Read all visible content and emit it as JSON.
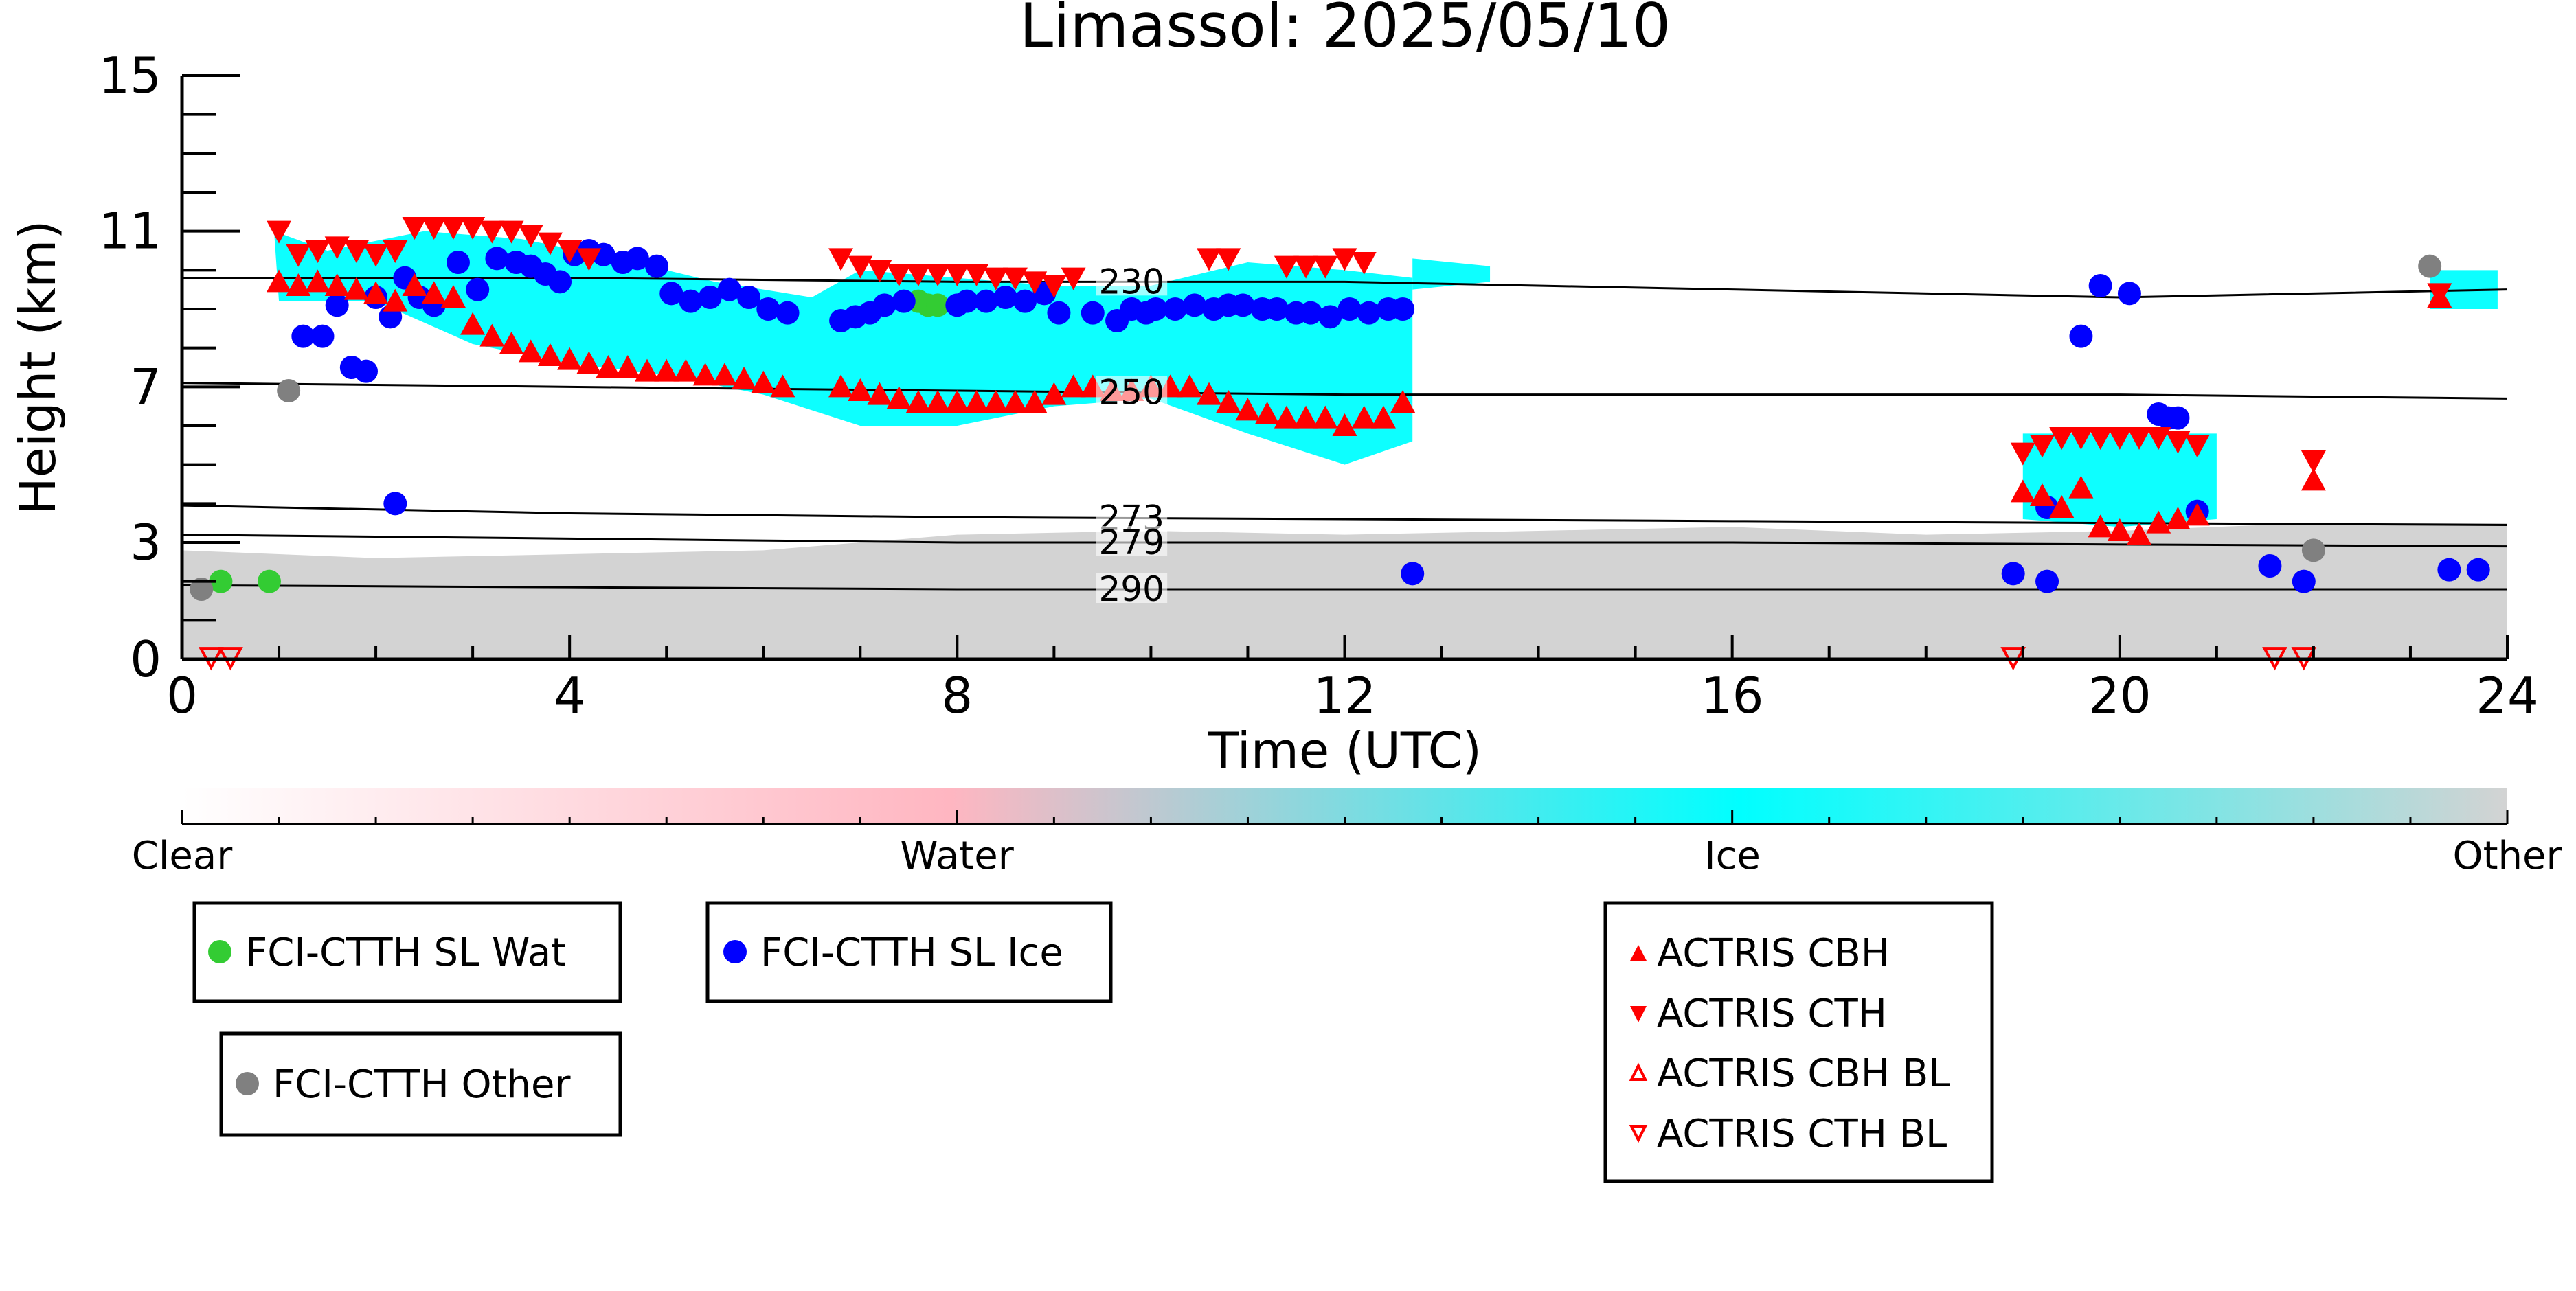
{
  "chart_data": {
    "type": "scatter",
    "title": "Limassol: 2025/05/10",
    "xlabel": "Time (UTC)",
    "ylabel": "Height (km)",
    "xlim": [
      0,
      24
    ],
    "ylim": [
      0,
      15
    ],
    "x_ticks": [
      0,
      4,
      8,
      12,
      16,
      20,
      24
    ],
    "x_tick_labels": [
      "0",
      "4",
      "8",
      "12",
      "16",
      "20",
      "24"
    ],
    "y_ticks": [
      0,
      3,
      7,
      11,
      15
    ],
    "y_tick_labels": [
      "0",
      "3",
      "7",
      "11",
      "15"
    ],
    "colorbar": {
      "labels": [
        "Clear",
        "Water",
        "Ice",
        "Other"
      ],
      "colors": [
        "#ffffff",
        "#ffb6c1",
        "#00ffff",
        "#d3d3d3"
      ]
    },
    "background_cloud_mask": {
      "other_layer": [
        [
          0,
          2.8
        ],
        [
          2,
          2.6
        ],
        [
          4,
          2.7
        ],
        [
          6,
          2.8
        ],
        [
          8,
          3.2
        ],
        [
          10,
          3.3
        ],
        [
          12,
          3.2
        ],
        [
          14,
          3.3
        ],
        [
          16,
          3.4
        ],
        [
          18,
          3.2
        ],
        [
          20,
          3.3
        ],
        [
          22,
          3.5
        ],
        [
          24,
          3.5
        ]
      ],
      "ice_regions": [
        {
          "upper": [
            [
              0.95,
              11.0
            ],
            [
              1.5,
              10.5
            ],
            [
              2.5,
              11.0
            ],
            [
              3.5,
              10.8
            ],
            [
              4.5,
              10.3
            ],
            [
              5.5,
              9.7
            ],
            [
              6.5,
              9.3
            ],
            [
              7.0,
              10.0
            ],
            [
              8.0,
              9.8
            ],
            [
              9.0,
              9.6
            ],
            [
              10.0,
              9.6
            ],
            [
              11.0,
              10.2
            ],
            [
              12.0,
              10.0
            ],
            [
              12.7,
              9.8
            ]
          ],
          "lower": [
            [
              12.7,
              5.6
            ],
            [
              12.0,
              5.0
            ],
            [
              11.0,
              5.8
            ],
            [
              10.0,
              6.7
            ],
            [
              9.0,
              6.5
            ],
            [
              8.0,
              6.0
            ],
            [
              7.0,
              6.0
            ],
            [
              6.0,
              6.8
            ],
            [
              5.0,
              7.3
            ],
            [
              4.0,
              7.6
            ],
            [
              3.0,
              8.1
            ],
            [
              2.0,
              9.2
            ],
            [
              1.0,
              9.2
            ]
          ]
        },
        {
          "upper": [
            [
              12.7,
              10.3
            ],
            [
              13.5,
              10.1
            ]
          ],
          "lower": [
            [
              13.5,
              9.7
            ],
            [
              12.7,
              9.5
            ]
          ]
        },
        {
          "upper": [
            [
              19.0,
              5.8
            ],
            [
              20.0,
              5.8
            ],
            [
              21.0,
              5.8
            ]
          ],
          "lower": [
            [
              21.0,
              3.6
            ],
            [
              20.0,
              3.4
            ],
            [
              19.0,
              3.6
            ]
          ]
        },
        {
          "upper": [
            [
              23.2,
              10.0
            ],
            [
              23.9,
              10.0
            ]
          ],
          "lower": [
            [
              23.9,
              9.0
            ],
            [
              23.2,
              9.0
            ]
          ]
        }
      ]
    },
    "temperature_contours": [
      {
        "label": "230",
        "x": [
          0,
          4,
          8,
          12,
          16,
          20,
          24
        ],
        "y": [
          9.8,
          9.8,
          9.7,
          9.7,
          9.5,
          9.3,
          9.5
        ]
      },
      {
        "label": "250",
        "x": [
          0,
          4,
          8,
          12,
          16,
          20,
          24
        ],
        "y": [
          7.1,
          7.0,
          6.9,
          6.8,
          6.8,
          6.8,
          6.7
        ]
      },
      {
        "label": "273",
        "x": [
          0,
          4,
          8,
          12,
          16,
          20,
          24
        ],
        "y": [
          3.95,
          3.75,
          3.65,
          3.6,
          3.55,
          3.5,
          3.45
        ]
      },
      {
        "label": "279",
        "x": [
          0,
          4,
          8,
          12,
          16,
          20,
          24
        ],
        "y": [
          3.2,
          3.1,
          3.0,
          3.0,
          3.0,
          2.95,
          2.9
        ]
      },
      {
        "label": "290",
        "x": [
          0,
          4,
          8,
          12,
          16,
          20,
          24
        ],
        "y": [
          1.9,
          1.85,
          1.8,
          1.8,
          1.8,
          1.8,
          1.8
        ]
      }
    ],
    "series": [
      {
        "name": "FCI-CTTH SL Wat",
        "marker": "circle",
        "color": "#33cc33",
        "x": [
          0.4,
          0.9,
          7.6,
          7.7,
          7.8
        ],
        "y": [
          2.0,
          2.0,
          9.2,
          9.1,
          9.1
        ]
      },
      {
        "name": "FCI-CTTH SL Ice",
        "marker": "circle",
        "color": "#0000ff",
        "x": [
          1.25,
          1.45,
          1.6,
          1.75,
          1.9,
          2.0,
          2.15,
          2.3,
          2.45,
          2.6,
          2.85,
          3.05,
          3.25,
          3.45,
          3.6,
          3.75,
          3.9,
          4.05,
          4.2,
          4.35,
          4.55,
          4.7,
          4.9,
          5.05,
          5.25,
          5.45,
          5.65,
          5.85,
          6.05,
          6.25,
          6.8,
          6.95,
          7.1,
          7.25,
          7.45,
          8.0,
          8.1,
          8.3,
          8.5,
          8.7,
          8.9,
          9.05,
          9.4,
          9.65,
          9.8,
          9.95,
          10.05,
          10.25,
          10.45,
          10.65,
          10.8,
          10.95,
          11.15,
          11.3,
          11.5,
          11.65,
          11.85,
          12.05,
          12.25,
          12.45,
          12.6,
          2.2,
          12.7,
          19.25,
          19.6,
          19.8,
          20.1,
          20.4,
          20.5,
          20.6,
          20.8,
          18.9,
          19.25,
          21.55,
          21.9,
          23.4,
          23.7
        ],
        "y": [
          8.3,
          8.3,
          9.1,
          7.5,
          7.4,
          9.3,
          8.8,
          9.8,
          9.3,
          9.1,
          10.2,
          9.5,
          10.3,
          10.2,
          10.1,
          9.9,
          9.7,
          10.4,
          10.5,
          10.4,
          10.2,
          10.3,
          10.1,
          9.4,
          9.2,
          9.3,
          9.5,
          9.3,
          9.0,
          8.9,
          8.7,
          8.8,
          8.9,
          9.1,
          9.2,
          9.1,
          9.2,
          9.2,
          9.3,
          9.2,
          9.4,
          8.9,
          8.9,
          8.7,
          9.0,
          8.9,
          9.0,
          9.0,
          9.1,
          9.0,
          9.1,
          9.1,
          9.0,
          9.0,
          8.9,
          8.9,
          8.8,
          9.0,
          8.9,
          9.0,
          9.0,
          4.0,
          2.2,
          3.9,
          8.3,
          9.6,
          9.4,
          6.3,
          6.2,
          6.2,
          3.8,
          2.2,
          2.0,
          2.4,
          2.0,
          2.3,
          2.3
        ]
      },
      {
        "name": "FCI-CTTH Other",
        "marker": "circle",
        "color": "#808080",
        "x": [
          0.2,
          1.1,
          22.0,
          23.2
        ],
        "y": [
          1.8,
          6.9,
          2.8,
          10.1
        ]
      },
      {
        "name": "ACTRIS CBH",
        "marker": "triangle-up",
        "color": "#ff0000",
        "x": [
          1.0,
          1.2,
          1.4,
          1.6,
          1.8,
          2.0,
          2.2,
          2.4,
          2.6,
          2.8,
          3.0,
          3.2,
          3.4,
          3.6,
          3.8,
          4.0,
          4.2,
          4.4,
          4.6,
          4.8,
          5.0,
          5.2,
          5.4,
          5.6,
          5.8,
          6.0,
          6.2,
          6.8,
          7.0,
          7.2,
          7.4,
          7.6,
          7.8,
          8.0,
          8.2,
          8.4,
          8.6,
          8.8,
          9.0,
          9.2,
          9.4,
          9.6,
          9.8,
          10.0,
          10.2,
          10.4,
          10.6,
          10.8,
          11.0,
          11.2,
          11.4,
          11.6,
          11.8,
          12.0,
          12.2,
          12.4,
          12.6,
          19.0,
          19.2,
          19.4,
          19.6,
          19.8,
          20.0,
          20.2,
          20.4,
          20.6,
          20.8,
          22.0,
          23.3
        ],
        "y": [
          9.7,
          9.6,
          9.7,
          9.6,
          9.5,
          9.4,
          9.2,
          9.6,
          9.4,
          9.3,
          8.6,
          8.3,
          8.1,
          7.9,
          7.8,
          7.7,
          7.6,
          7.5,
          7.5,
          7.4,
          7.4,
          7.4,
          7.3,
          7.3,
          7.2,
          7.1,
          7.0,
          7.0,
          6.9,
          6.8,
          6.7,
          6.6,
          6.6,
          6.6,
          6.6,
          6.6,
          6.6,
          6.6,
          6.8,
          7.0,
          7.0,
          6.9,
          6.9,
          7.0,
          7.0,
          7.0,
          6.8,
          6.6,
          6.4,
          6.3,
          6.2,
          6.2,
          6.2,
          6.0,
          6.2,
          6.2,
          6.6,
          4.3,
          4.2,
          3.9,
          4.4,
          3.4,
          3.3,
          3.2,
          3.5,
          3.6,
          3.7,
          4.6,
          9.3
        ]
      },
      {
        "name": "ACTRIS CTH",
        "marker": "triangle-down",
        "color": "#ff0000",
        "x": [
          1.0,
          1.2,
          1.4,
          1.6,
          1.8,
          2.0,
          2.2,
          2.4,
          2.6,
          2.8,
          3.0,
          3.2,
          3.4,
          3.6,
          3.8,
          4.0,
          4.2,
          6.8,
          7.0,
          7.2,
          7.4,
          7.6,
          7.8,
          8.0,
          8.2,
          8.4,
          8.6,
          8.8,
          9.0,
          9.2,
          10.6,
          10.8,
          11.4,
          11.6,
          11.8,
          12.0,
          12.2,
          19.0,
          19.2,
          19.4,
          19.6,
          19.8,
          20.0,
          20.2,
          20.4,
          20.6,
          20.8,
          22.0,
          23.3
        ],
        "y": [
          11.0,
          10.4,
          10.5,
          10.6,
          10.5,
          10.4,
          10.5,
          11.1,
          11.1,
          11.1,
          11.1,
          11.0,
          11.0,
          10.9,
          10.7,
          10.5,
          10.3,
          10.3,
          10.1,
          10.0,
          9.9,
          9.9,
          9.9,
          9.9,
          9.9,
          9.8,
          9.8,
          9.7,
          9.6,
          9.8,
          10.3,
          10.3,
          10.1,
          10.1,
          10.1,
          10.3,
          10.2,
          5.3,
          5.5,
          5.7,
          5.7,
          5.7,
          5.7,
          5.7,
          5.7,
          5.6,
          5.5,
          5.1,
          9.4
        ]
      },
      {
        "name": "ACTRIS CBH BL",
        "marker": "triangle-up-open",
        "color": "#ff0000",
        "x": [],
        "y": []
      },
      {
        "name": "ACTRIS CTH BL",
        "marker": "triangle-down-open",
        "color": "#ff0000",
        "x": [
          0.3,
          0.5,
          18.9,
          21.6,
          21.9
        ],
        "y": [
          0.05,
          0.05,
          0.05,
          0.05,
          0.05
        ]
      }
    ],
    "legends": [
      {
        "entries": [
          "FCI-CTTH SL Wat"
        ]
      },
      {
        "entries": [
          "FCI-CTTH SL Ice"
        ]
      },
      {
        "entries": [
          "FCI-CTTH Other"
        ]
      },
      {
        "entries": [
          "ACTRIS CBH",
          "ACTRIS CTH",
          "ACTRIS CBH BL",
          "ACTRIS CTH BL"
        ]
      }
    ],
    "grid": false
  }
}
